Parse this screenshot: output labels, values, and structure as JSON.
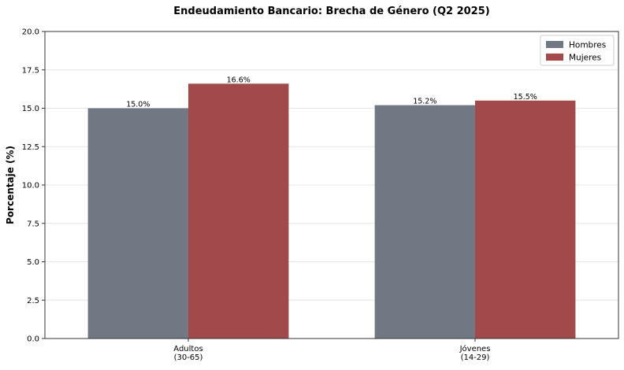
{
  "chart_data": {
    "type": "bar",
    "title": "Endeudamiento Bancario: Brecha de Género (Q2 2025)",
    "xlabel": "",
    "ylabel": "Porcentaje (%)",
    "ylim": [
      0,
      20
    ],
    "yticks": [
      "0.0",
      "2.5",
      "5.0",
      "7.5",
      "10.0",
      "12.5",
      "15.0",
      "17.5",
      "20.0"
    ],
    "categories": [
      [
        "Adultos",
        "(30-65)"
      ],
      [
        "Jóvenes",
        "(14-29)"
      ]
    ],
    "series": [
      {
        "name": "Hombres",
        "values": [
          15.0,
          15.2
        ],
        "labels": [
          "15.0%",
          "15.2%"
        ],
        "color": "#717884"
      },
      {
        "name": "Mujeres",
        "values": [
          16.6,
          15.5
        ],
        "labels": [
          "16.6%",
          "15.5%"
        ],
        "color": "#a24a4b"
      }
    ],
    "grid": true,
    "legend_position": "top-right"
  }
}
